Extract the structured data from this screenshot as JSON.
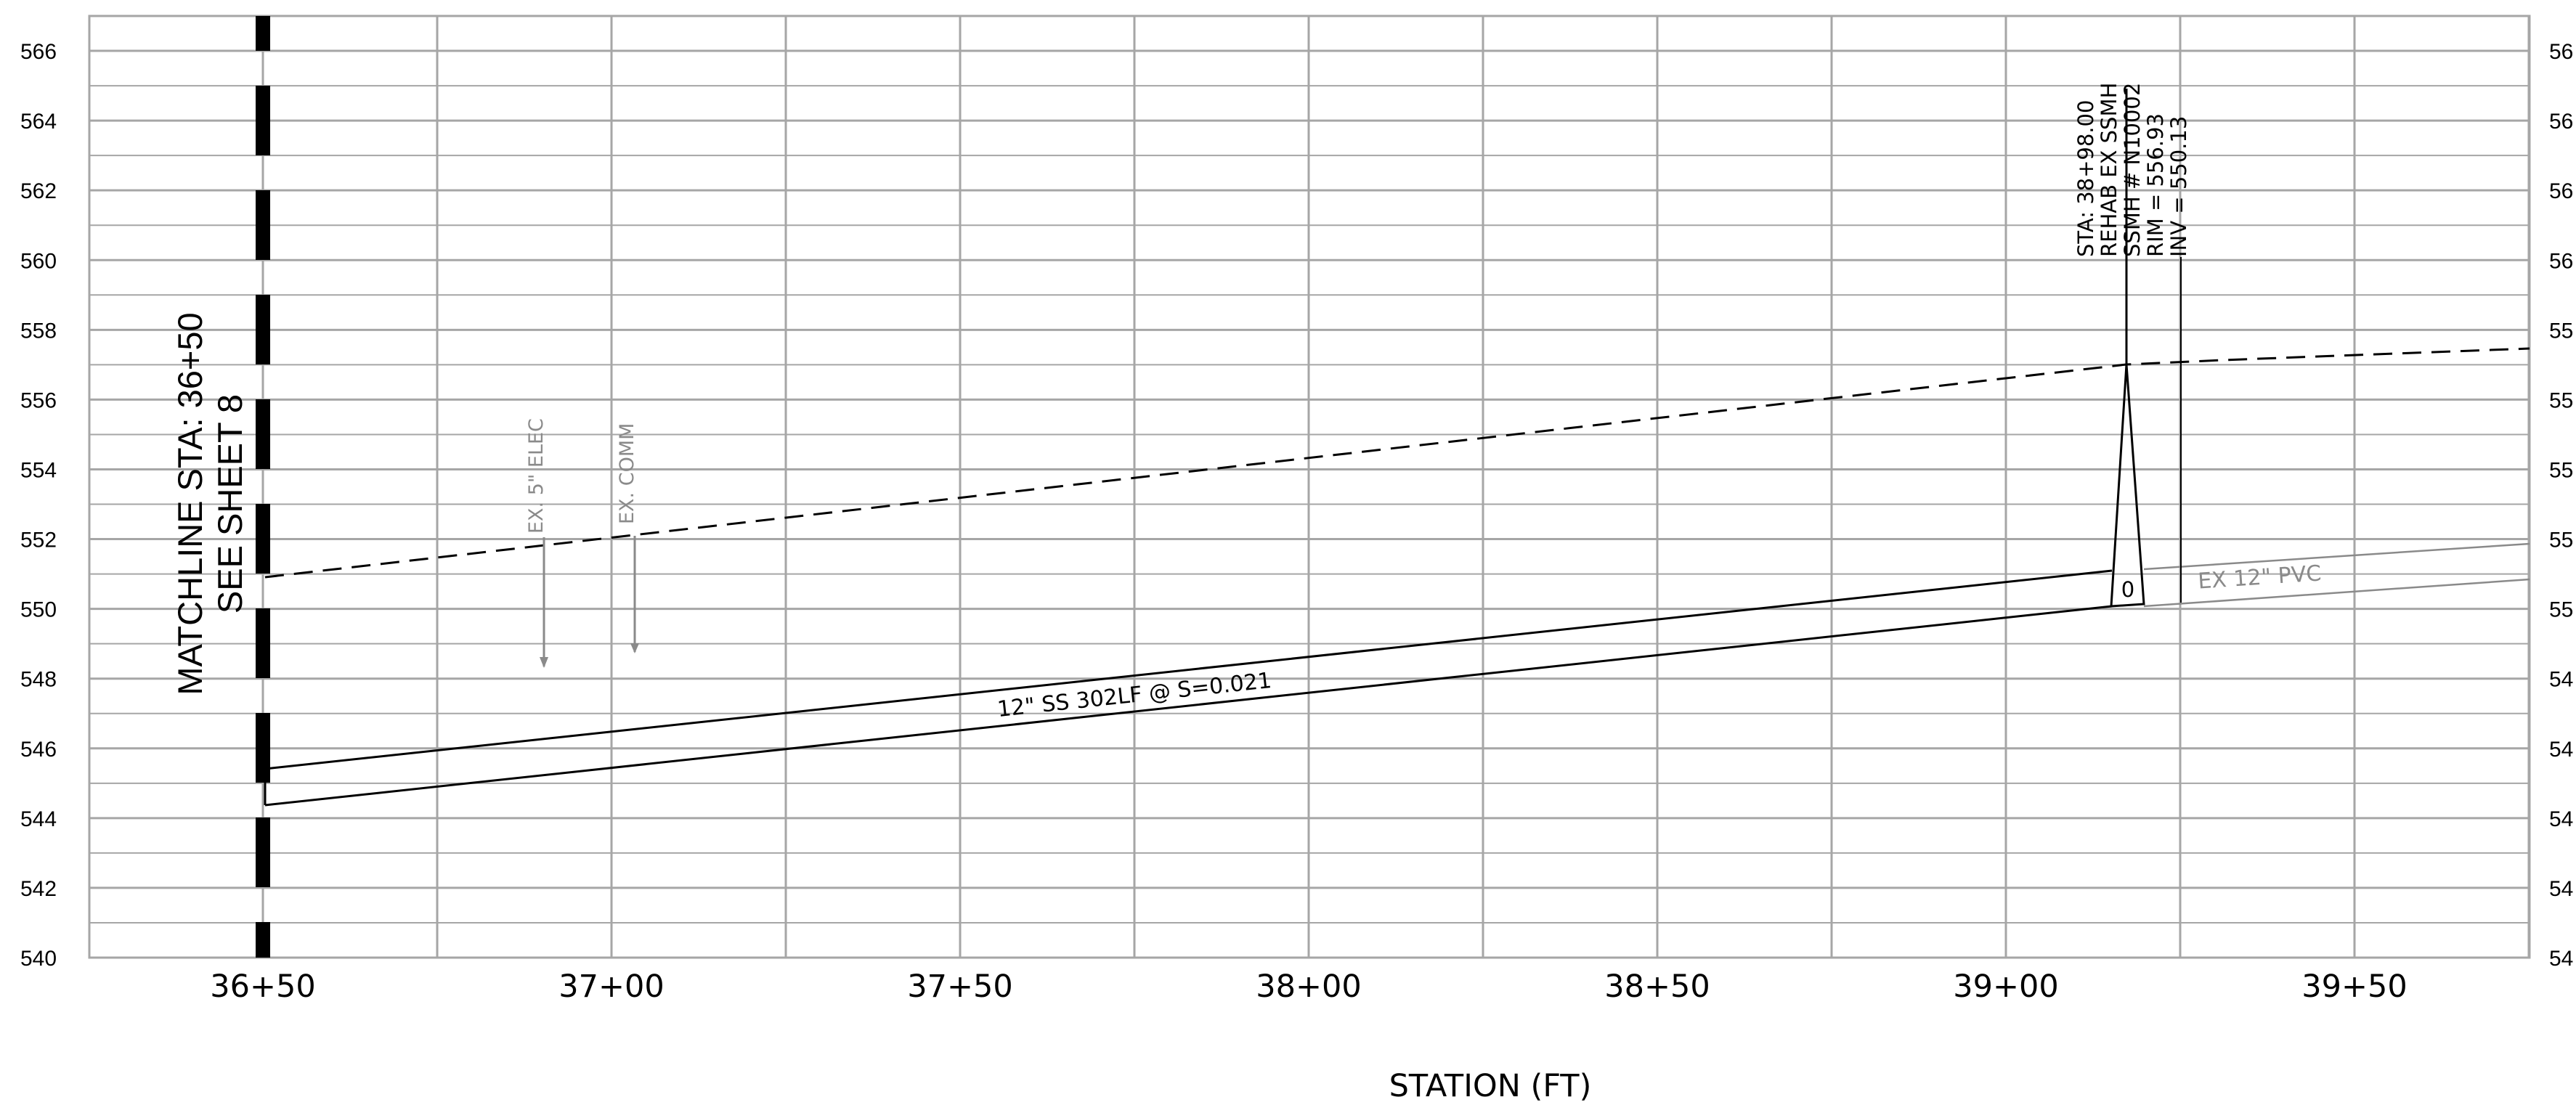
{
  "profile": {
    "x_axis": {
      "title": "STATION (FT)",
      "ticks": [
        "36+50",
        "37+00",
        "37+50",
        "38+00",
        "38+50",
        "39+00",
        "39+50"
      ],
      "range_ft": [
        3625,
        3975
      ]
    },
    "y_axis": {
      "left_ticks": [
        "566",
        "564",
        "562",
        "560",
        "558",
        "556",
        "554",
        "552",
        "550",
        "548",
        "546",
        "544",
        "542",
        "540"
      ],
      "right_ticks": [
        "56",
        "56",
        "56",
        "56",
        "55",
        "55",
        "55",
        "55",
        "55",
        "54",
        "54",
        "54",
        "54",
        "54"
      ],
      "range_ft": [
        540,
        567
      ]
    },
    "grid": true
  },
  "matchline": {
    "line1": "MATCHLINE STA: 36+50",
    "line2": "SEE SHEET 8"
  },
  "manhole": {
    "lines": [
      "STA: 38+98.00",
      "REHAB EX SSMH",
      "SSMH # N10002",
      "RIM = 556.93",
      "INV = 550.13"
    ],
    "symbol": "0"
  },
  "utilities": {
    "elec_label": "EX. 5\" ELEC",
    "comm_label": "EX. COMM"
  },
  "pipes": {
    "proposed_label": "12\" SS 302LF @ S=0.021",
    "existing_label": "EX 12\" PVC"
  },
  "colors": {
    "grid": "#a6a6a6",
    "linework": "#000000",
    "existing": "#8a8a8a"
  }
}
